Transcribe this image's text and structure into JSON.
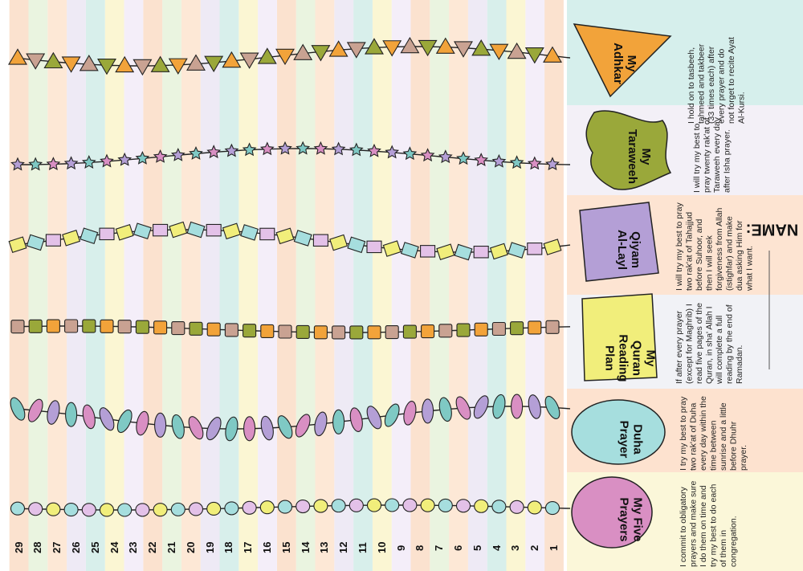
{
  "colors": {
    "stripes": [
      "#fbe2cf",
      "#f4eef9",
      "#fbf6d3",
      "#d8efeb",
      "#eeeaf5",
      "#fde8d6",
      "#eaf4e0"
    ],
    "panels": [
      "#d6efec",
      "#f3f0f7",
      "#fde4d2",
      "#f1f2f6",
      "#fde2cf",
      "#fbf7d9"
    ],
    "orange": "#f2a33a",
    "green": "#9aa83a",
    "purple": "#b49fd6",
    "yellow": "#f1ee7b",
    "teal": "#a6dede",
    "pink": "#d98fc3"
  },
  "name_label": "NAME:",
  "sections": [
    {
      "id": "adhkar",
      "title": "My\nAdhkar",
      "shape": "triangle",
      "text": "I hold on to tasbeeh, tahmeed and takbeer (33 times each) after every prayer and do not forget to recite Ayat Al-Kursi."
    },
    {
      "id": "taraweeh",
      "title": "My\nTaraweeh",
      "shape": "star",
      "text": "I will try my best to pray twenty rak'at of Taraweeh every day after Isha prayer."
    },
    {
      "id": "qiyam",
      "title": "Qiyam\nAl-Layl",
      "shape": "diamond",
      "text": "I will try my best to pray two rak'at of Tahajjud before Suhoor, and then I will seek forgiveness from Allah (istighfar) and make dua asking Him for what I want."
    },
    {
      "id": "quran",
      "title": "My\nQuran\nReading\nPlan",
      "shape": "square",
      "text": "If after every prayer (except for Maghrib) I read five pages of the Quran, in sha' Allah I will complete a full reading by the end of Ramadan."
    },
    {
      "id": "duha",
      "title": "Duha\nPrayer",
      "shape": "oval",
      "text": "I try my best to pray two rak'at of Duha every day within the time between sunrise and a little before Dhuhr prayer."
    },
    {
      "id": "five",
      "title": "My Five\nPrayers",
      "shape": "circle",
      "text": "I commit to obligatory prayers and make sure I do them on time and try my best to do each of them in congregation."
    }
  ],
  "days": [
    "1",
    "2",
    "3",
    "4",
    "5",
    "6",
    "7",
    "8",
    "9",
    "10",
    "11",
    "12",
    "13",
    "14",
    "15",
    "16",
    "17",
    "18",
    "19",
    "20",
    "21",
    "22",
    "23",
    "24",
    "25",
    "26",
    "27",
    "28",
    "29"
  ]
}
